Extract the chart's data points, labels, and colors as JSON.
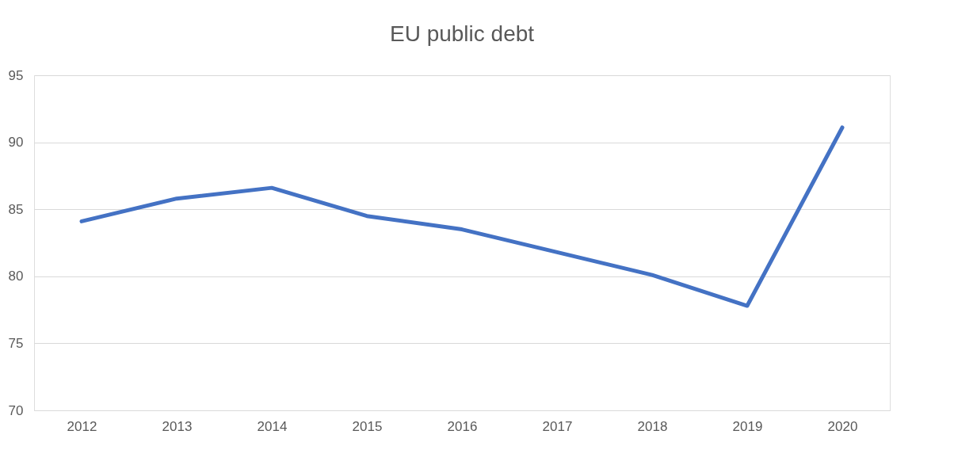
{
  "chart_data": {
    "type": "line",
    "title": "EU public debt",
    "categories": [
      "2012",
      "2013",
      "2014",
      "2015",
      "2016",
      "2017",
      "2018",
      "2019",
      "2020"
    ],
    "series": [
      {
        "color": "#4472c4",
        "values": [
          84.1,
          85.8,
          86.6,
          84.5,
          83.5,
          81.8,
          80.1,
          77.8,
          91.1
        ]
      }
    ],
    "ylim": [
      70,
      95
    ],
    "yticks": [
      70,
      75,
      80,
      85,
      90,
      95
    ],
    "grid": "y",
    "legend": false,
    "marker": "none",
    "line_style": "solid"
  }
}
